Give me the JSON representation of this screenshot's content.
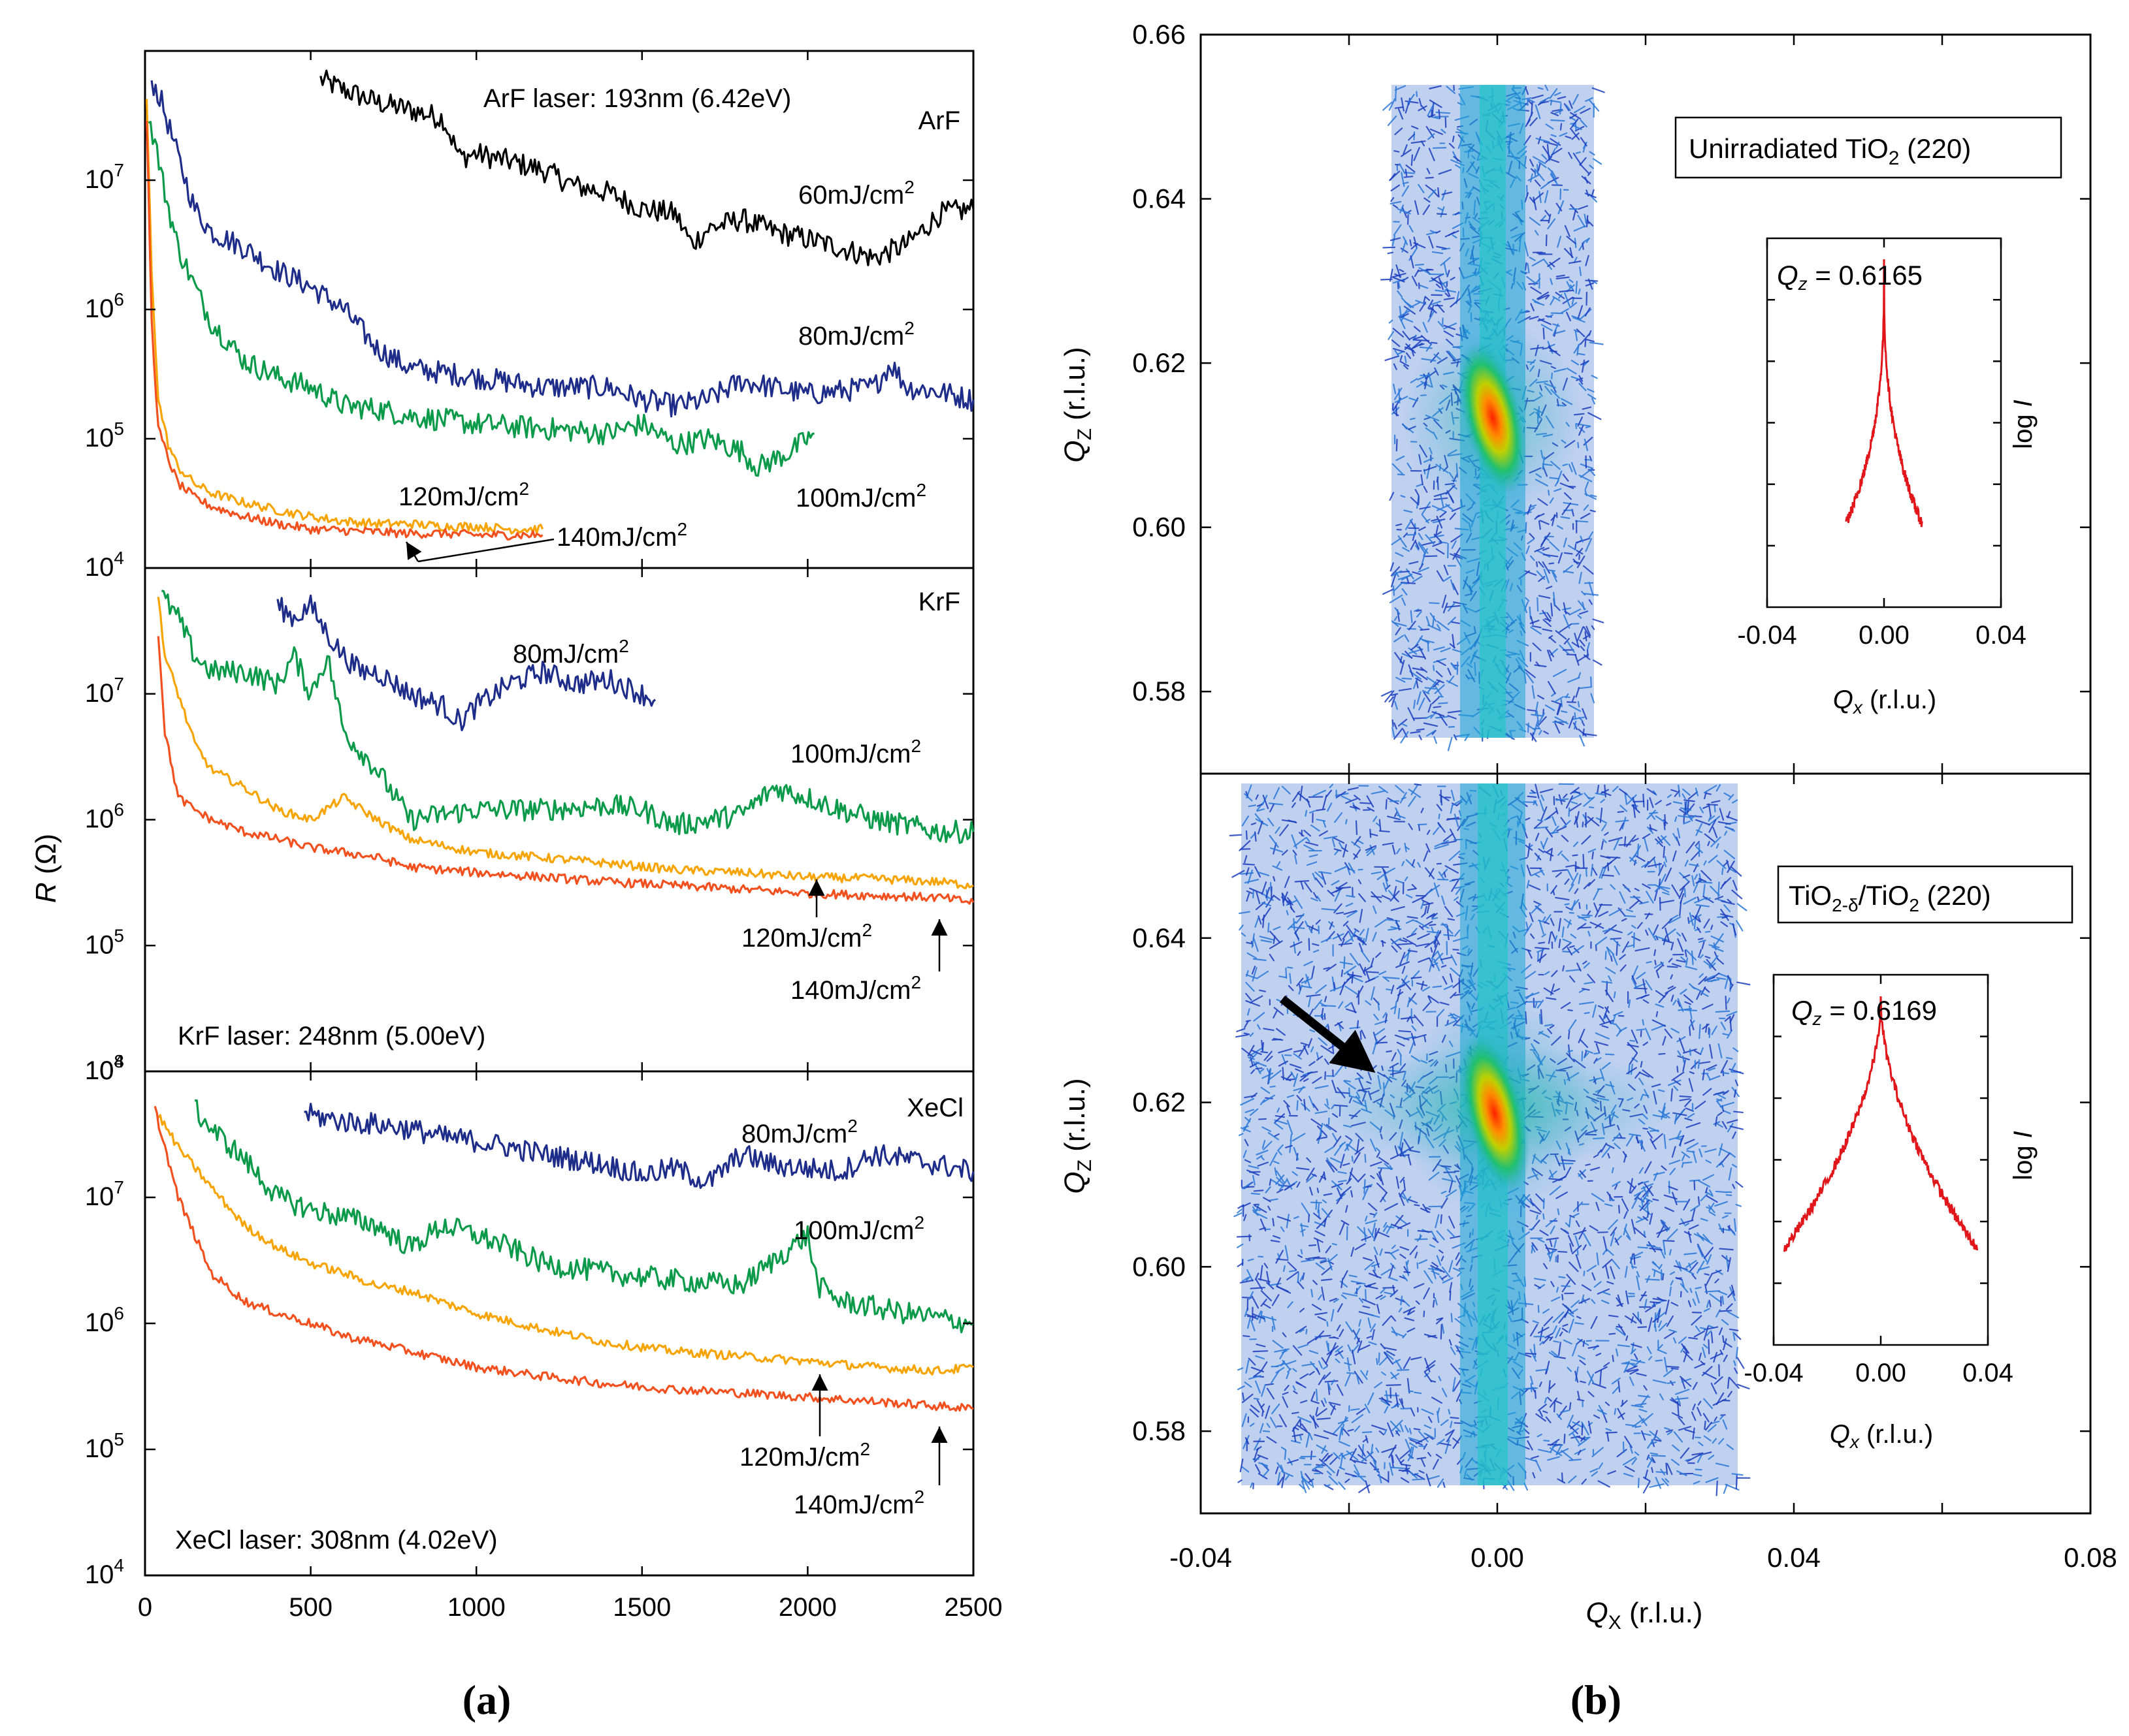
{
  "figure": {
    "caption_a": "(a)",
    "caption_b": "(b)"
  },
  "colors": {
    "60": "#000000",
    "80": "#1f2d8a",
    "100": "#0a9a4a",
    "120": "#f7a400",
    "140": "#f2501e",
    "red": "#e0161b"
  },
  "panel_a": {
    "ylabel": "R (Ω)",
    "ylabel_italic": "R",
    "ylabel_unit": " (Ω)",
    "xticks": [
      "0",
      "500",
      "1000",
      "1500",
      "2000",
      "2500"
    ],
    "xlim": [
      0,
      2500
    ],
    "ytick_labels": [
      "10^4",
      "10^5",
      "10^6",
      "10^7",
      "10^8"
    ]
  },
  "chart_data": [
    {
      "type": "line",
      "title": "ArF",
      "annotation": "ArF laser: 193nm (6.42eV)",
      "xlabel": "",
      "ylabel": "R (Ω)",
      "yscale": "log",
      "xlim": [
        0,
        2500
      ],
      "ylim": [
        10000,
        100000000
      ],
      "series": [
        {
          "name": "60mJ/cm2",
          "label": "60mJ/cm",
          "color_key": "60",
          "x": [
            530,
            600,
            700,
            800,
            900,
            950,
            1000,
            1100,
            1200,
            1300,
            1400,
            1500,
            1600,
            1650,
            1700,
            1800,
            1900,
            2000,
            2100,
            2200,
            2300,
            2400,
            2500
          ],
          "y": [
            60000000,
            50000000,
            40000000,
            35000000,
            30000000,
            15000000,
            16000000,
            14000000,
            12000000,
            9000000,
            8000000,
            6000000,
            5500000,
            3200000,
            4200000,
            5000000,
            4000000,
            3500000,
            3000000,
            2500000,
            3200000,
            5500000,
            6000000
          ]
        },
        {
          "name": "80mJ/cm2",
          "label": "80mJ/cm",
          "color_key": "80",
          "x": [
            20,
            50,
            100,
            150,
            200,
            300,
            400,
            500,
            600,
            700,
            800,
            1000,
            1200,
            1400,
            1500,
            1600,
            1700,
            1800,
            2000,
            2200,
            2250,
            2300,
            2400,
            2500
          ],
          "y": [
            60000000,
            40000000,
            15000000,
            6000000,
            4000000,
            3000000,
            2000000,
            1500000,
            1000000,
            500000,
            350000,
            300000,
            250000,
            250000,
            200000,
            180000,
            200000,
            280000,
            220000,
            250000,
            380000,
            250000,
            230000,
            200000
          ]
        },
        {
          "name": "100mJ/cm2",
          "label": "100mJ/cm",
          "color_key": "100",
          "x": [
            10,
            30,
            60,
            100,
            150,
            200,
            300,
            400,
            500,
            600,
            700,
            800,
            1000,
            1200,
            1400,
            1500,
            1600,
            1700,
            1800,
            1850,
            1950,
            2020
          ],
          "y": [
            30000000,
            20000000,
            8000000,
            3000000,
            1500000,
            800000,
            400000,
            300000,
            250000,
            180000,
            170000,
            150000,
            130000,
            120000,
            110000,
            130000,
            90000,
            100000,
            80000,
            60000,
            80000,
            110000
          ]
        },
        {
          "name": "120mJ/cm2",
          "label": "120mJ/cm",
          "color_key": "120",
          "x": [
            5,
            20,
            40,
            70,
            100,
            150,
            200,
            300,
            400,
            500,
            600,
            700,
            800,
            900,
            1000,
            1100,
            1200
          ],
          "y": [
            40000000,
            2000000,
            200000,
            90000,
            60000,
            45000,
            38000,
            32000,
            28000,
            25000,
            23000,
            22000,
            22000,
            21000,
            21000,
            20000,
            20000
          ]
        },
        {
          "name": "140mJ/cm2",
          "label": "140mJ/cm",
          "color_key": "140",
          "x": [
            5,
            20,
            40,
            70,
            100,
            150,
            200,
            300,
            400,
            500,
            600,
            700,
            800,
            900,
            1000,
            1100,
            1200
          ],
          "y": [
            30000000,
            800000,
            120000,
            70000,
            45000,
            35000,
            30000,
            25000,
            22000,
            20000,
            19500,
            19000,
            18500,
            18500,
            18000,
            18000,
            18000
          ]
        }
      ]
    },
    {
      "type": "line",
      "title": "KrF",
      "annotation": "KrF laser: 248nm (5.00eV)",
      "xlabel": "",
      "ylabel": "R (Ω)",
      "yscale": "log",
      "xlim": [
        0,
        2500
      ],
      "ylim": [
        10000,
        100000000
      ],
      "series": [
        {
          "name": "80mJ/cm2",
          "label": "80mJ/cm",
          "color_key": "80",
          "x": [
            400,
            450,
            500,
            550,
            600,
            650,
            700,
            800,
            900,
            950,
            1000,
            1100,
            1200,
            1300,
            1400,
            1500,
            1540
          ],
          "y": [
            50000000,
            40000000,
            50000000,
            30000000,
            20000000,
            15000000,
            15000000,
            10000000,
            8000000,
            6000000,
            8000000,
            12000000,
            15000000,
            12000000,
            13000000,
            10000000,
            9000000
          ]
        },
        {
          "name": "100mJ/cm2",
          "label": "100mJ/cm",
          "color_key": "100",
          "x": [
            50,
            100,
            150,
            200,
            300,
            400,
            450,
            500,
            550,
            600,
            700,
            800,
            900,
            1000,
            1200,
            1400,
            1500,
            1600,
            1800,
            1900,
            2000,
            2100,
            2200,
            2300,
            2400,
            2500
          ],
          "y": [
            60000000,
            40000000,
            20000000,
            15000000,
            15000000,
            12000000,
            20000000,
            10000000,
            20000000,
            5000000,
            2500000,
            1000000,
            1100000,
            1200000,
            1200000,
            1300000,
            1200000,
            900000,
            1100000,
            1800000,
            1500000,
            1200000,
            1000000,
            900000,
            800000,
            800000
          ]
        },
        {
          "name": "120mJ/cm2",
          "label": "120mJ/cm",
          "color_key": "120",
          "x": [
            40,
            60,
            100,
            150,
            200,
            300,
            400,
            500,
            600,
            700,
            800,
            1000,
            1200,
            1400,
            1600,
            1800,
            2000,
            2200,
            2400,
            2500
          ],
          "y": [
            60000000,
            20000000,
            10000000,
            4000000,
            2500000,
            1800000,
            1200000,
            1000000,
            1500000,
            1000000,
            700000,
            550000,
            500000,
            450000,
            400000,
            380000,
            350000,
            340000,
            320000,
            300000
          ]
        },
        {
          "name": "140mJ/cm2",
          "label": "140mJ/cm",
          "color_key": "140",
          "x": [
            40,
            60,
            100,
            150,
            200,
            300,
            400,
            500,
            600,
            700,
            800,
            1000,
            1200,
            1400,
            1600,
            1800,
            2000,
            2200,
            2400,
            2500
          ],
          "y": [
            30000000,
            5000000,
            1500000,
            1200000,
            1000000,
            800000,
            700000,
            600000,
            550000,
            500000,
            420000,
            380000,
            350000,
            320000,
            300000,
            280000,
            260000,
            250000,
            240000,
            220000
          ]
        }
      ]
    },
    {
      "type": "line",
      "title": "XeCl",
      "annotation": "XeCl laser: 308nm (4.02eV)",
      "xlabel": "",
      "ylabel": "R (Ω)",
      "yscale": "log",
      "xlim": [
        0,
        2500
      ],
      "ylim": [
        10000,
        100000000
      ],
      "series": [
        {
          "name": "80mJ/cm2",
          "label": "80mJ/cm",
          "color_key": "80",
          "x": [
            480,
            500,
            600,
            700,
            800,
            900,
            1000,
            1100,
            1200,
            1300,
            1400,
            1500,
            1600,
            1700,
            1800,
            1900,
            2000,
            2100,
            2200,
            2300,
            2400,
            2500
          ],
          "y": [
            50000000,
            45000000,
            40000000,
            38000000,
            35000000,
            30000000,
            28000000,
            25000000,
            22000000,
            20000000,
            18000000,
            15000000,
            17000000,
            13000000,
            22000000,
            18000000,
            17000000,
            16000000,
            22000000,
            20000000,
            18000000,
            16000000
          ]
        },
        {
          "name": "100mJ/cm2",
          "label": "100mJ/cm",
          "color_key": "100",
          "x": [
            150,
            200,
            300,
            400,
            500,
            600,
            700,
            800,
            900,
            1000,
            1100,
            1200,
            1400,
            1600,
            1800,
            1950,
            2000,
            2030,
            2100,
            2300,
            2500
          ],
          "y": [
            50000000,
            35000000,
            20000000,
            10000000,
            8000000,
            7000000,
            6000000,
            4000000,
            6000000,
            5000000,
            4000000,
            3000000,
            2500000,
            2200000,
            2000000,
            4000000,
            5000000,
            2000000,
            1500000,
            1200000,
            1000000
          ]
        },
        {
          "name": "120mJ/cm2",
          "label": "120mJ/cm",
          "color_key": "120",
          "x": [
            40,
            100,
            200,
            300,
            400,
            500,
            600,
            700,
            800,
            1000,
            1200,
            1400,
            1600,
            1800,
            2000,
            2200,
            2400,
            2500
          ],
          "y": [
            45000000,
            25000000,
            12000000,
            6000000,
            4000000,
            3000000,
            2500000,
            2000000,
            1800000,
            1200000,
            900000,
            700000,
            600000,
            550000,
            500000,
            450000,
            420000,
            450000
          ]
        },
        {
          "name": "140mJ/cm2",
          "label": "140mJ/cm",
          "color_key": "140",
          "x": [
            30,
            60,
            100,
            150,
            200,
            300,
            400,
            500,
            600,
            800,
            1000,
            1200,
            1400,
            1600,
            1800,
            2000,
            2200,
            2400,
            2500
          ],
          "y": [
            50000000,
            25000000,
            10000000,
            5000000,
            2500000,
            1500000,
            1200000,
            1000000,
            800000,
            600000,
            450000,
            380000,
            330000,
            300000,
            280000,
            260000,
            240000,
            220000,
            210000
          ]
        }
      ]
    },
    {
      "type": "heatmap",
      "title": "Unirradiated TiO",
      "box_sub": "2",
      "box_suffix": " (220)",
      "xlabel": "",
      "ylabel_main": "Q",
      "ylabel_sub": "Z",
      "ylabel_unit": " (r.l.u.)",
      "ylim": [
        0.57,
        0.66
      ],
      "yticks": [
        "0.58",
        "0.60",
        "0.62",
        "0.64",
        "0.66"
      ],
      "peak": {
        "qx": 0.0,
        "qz": 0.6165
      },
      "inset": {
        "label": "Qz = 0.6165",
        "label_main": "Q",
        "label_sub": "z",
        "label_value": " = 0.6165",
        "xticks": [
          "-0.04",
          "0.00",
          "0.04"
        ],
        "xlabel_main": "Q",
        "xlabel_sub": "x",
        "xlabel_unit": " (r.l.u.)",
        "ylabel_text": "log ",
        "ylabel_italic": "I"
      }
    },
    {
      "type": "heatmap",
      "title": "TiO2-δ/TiO2 (220)",
      "box_main1": "TiO",
      "box_sub1": "2-δ",
      "box_main2": "/TiO",
      "box_sub2": "2",
      "box_suffix": " (220)",
      "xlabel_main": "Q",
      "xlabel_sub": "X",
      "xlabel_unit": " (r.l.u.)",
      "ylabel_main": "Q",
      "ylabel_sub": "Z",
      "ylabel_unit": " (r.l.u.)",
      "xlim": [
        -0.04,
        0.08
      ],
      "xticks": [
        "-0.04",
        "0.00",
        "0.04",
        "0.08"
      ],
      "ylim": [
        0.57,
        0.66
      ],
      "yticks": [
        "0.58",
        "0.60",
        "0.62",
        "0.64"
      ],
      "peak": {
        "qx": 0.0,
        "qz": 0.6169
      },
      "inset": {
        "label": "Qz = 0.6169",
        "label_main": "Q",
        "label_sub": "z",
        "label_value": " = 0.6169",
        "xticks": [
          "-0.04",
          "0.00",
          "0.04"
        ],
        "xlabel_main": "Q",
        "xlabel_sub": "x",
        "xlabel_unit": " (r.l.u.)",
        "ylabel_text": "log ",
        "ylabel_italic": "I"
      }
    }
  ]
}
